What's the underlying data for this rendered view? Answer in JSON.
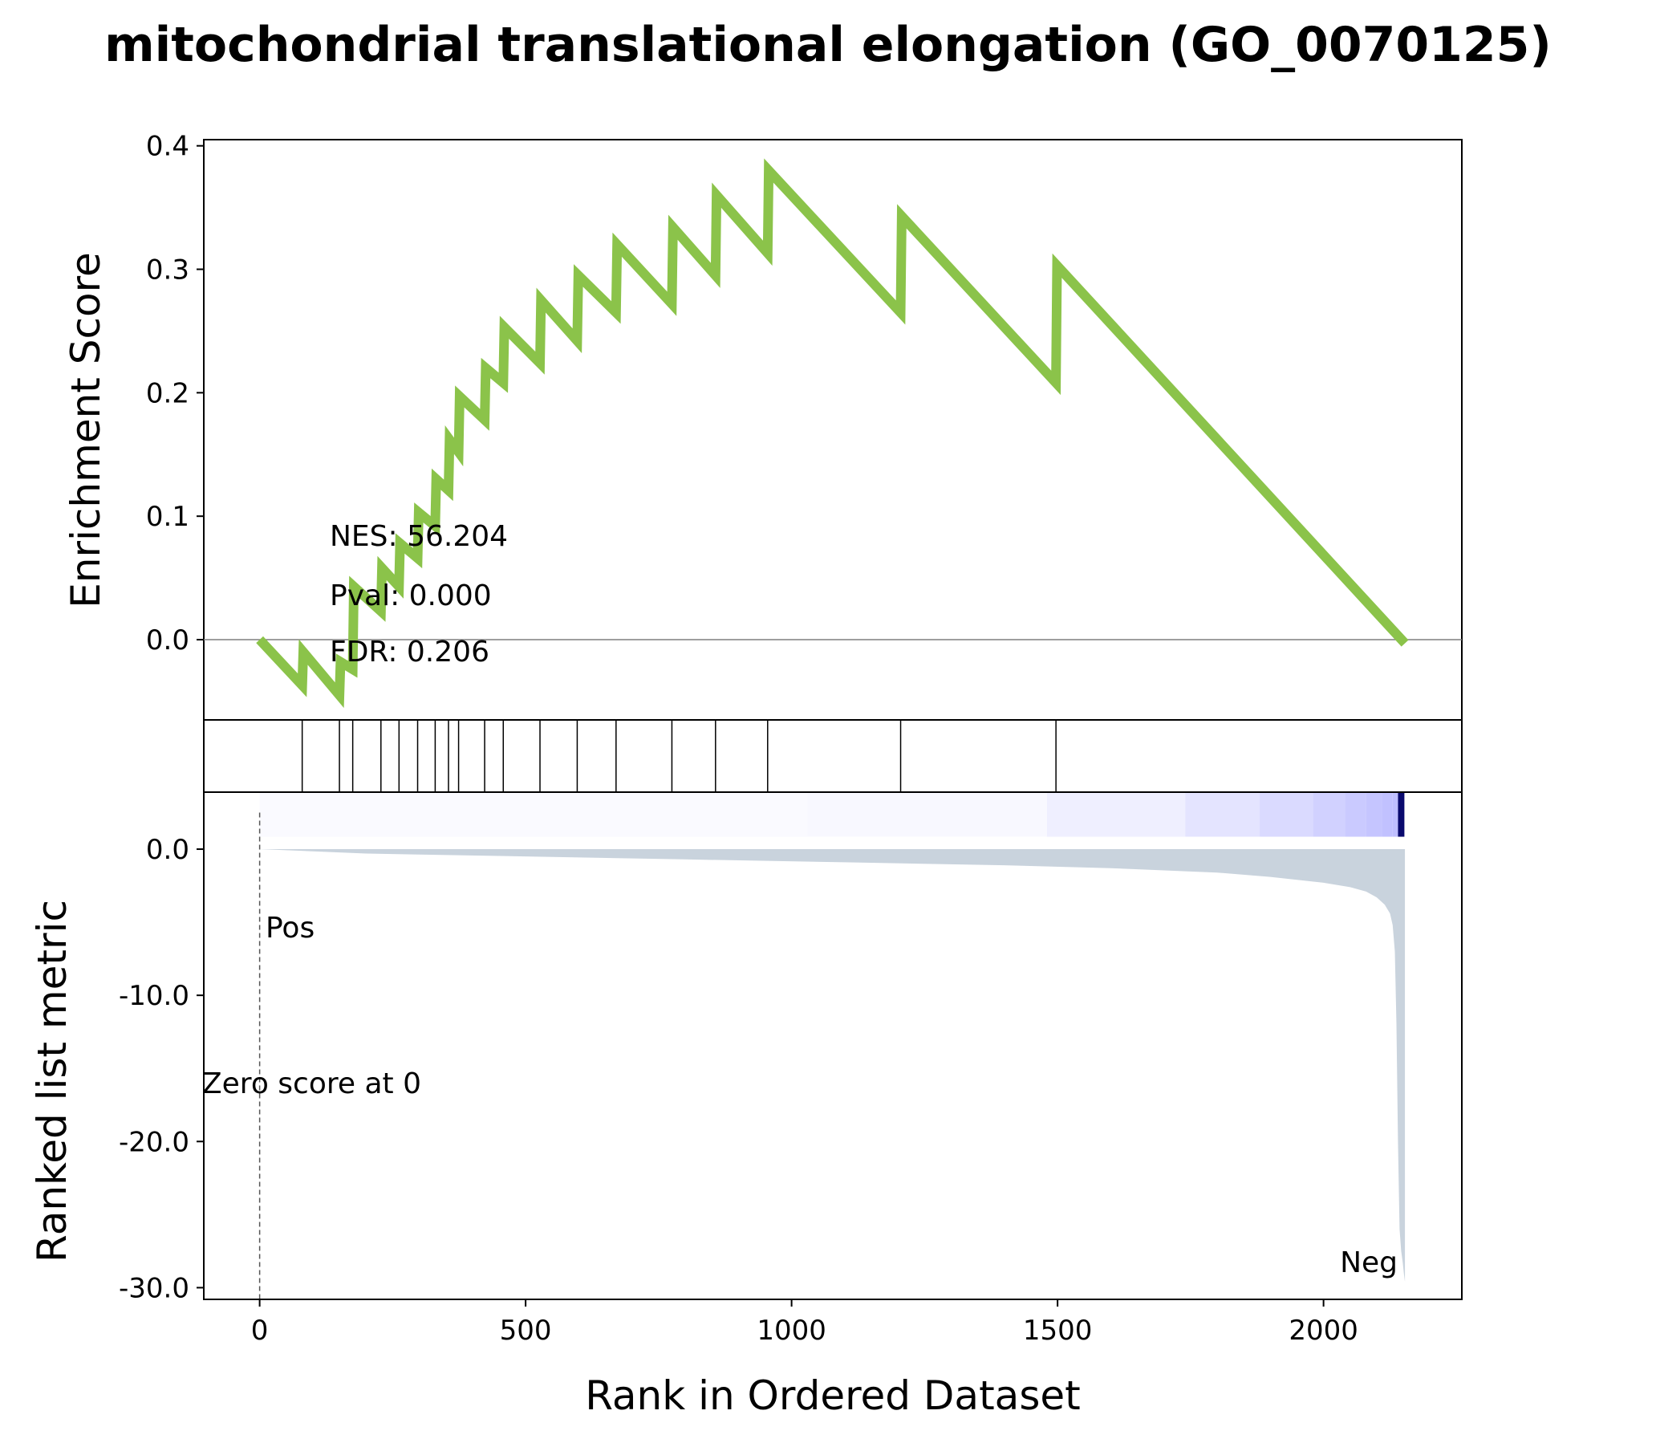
{
  "chart_data": {
    "type": "line",
    "title": "mitochondrial translational elongation (GO_0070125)",
    "es_panel": {
      "ylabel": "Enrichment Score",
      "ylim": [
        -0.065,
        0.405
      ],
      "yticks": [
        0.0,
        0.1,
        0.2,
        0.3,
        0.4
      ],
      "ytick_labels": [
        "0.0",
        "0.1",
        "0.2",
        "0.3",
        "0.4"
      ],
      "line_color": "#8bc34a",
      "series": [
        {
          "x": [
            0,
            80,
            82,
            150,
            152,
            175,
            177,
            228,
            230,
            262,
            264,
            297,
            299,
            330,
            332,
            355,
            357,
            374,
            376,
            423,
            425,
            458,
            460,
            527,
            529,
            597,
            599,
            670,
            672,
            775,
            777,
            857,
            859,
            955,
            957,
            1205,
            1207,
            1497,
            1499,
            2153
          ],
          "y": [
            0.0,
            -0.037,
            -0.01,
            -0.045,
            -0.018,
            -0.024,
            0.043,
            0.023,
            0.058,
            0.043,
            0.078,
            0.066,
            0.103,
            0.092,
            0.13,
            0.121,
            0.162,
            0.152,
            0.197,
            0.178,
            0.22,
            0.208,
            0.253,
            0.224,
            0.275,
            0.242,
            0.295,
            0.265,
            0.32,
            0.272,
            0.334,
            0.295,
            0.36,
            0.313,
            0.38,
            0.265,
            0.343,
            0.208,
            0.303,
            -0.003
          ]
        }
      ],
      "annotations": [
        "NES: 56.204",
        "Pval: 0.000",
        "FDR: 0.206"
      ]
    },
    "hits_panel": {
      "hit_ranks": [
        80,
        150,
        175,
        228,
        262,
        297,
        330,
        355,
        374,
        423,
        458,
        527,
        597,
        670,
        775,
        857,
        955,
        1205,
        1497
      ]
    },
    "rank_panel": {
      "ylabel": "Ranked list metric",
      "xlabel": "Rank in Ordered Dataset",
      "xlim": [
        -105,
        2260
      ],
      "xticks": [
        0,
        500,
        1000,
        1500,
        2000
      ],
      "xtick_labels": [
        "0",
        "500",
        "1000",
        "1500",
        "2000"
      ],
      "ylim": [
        -30.8,
        3.9
      ],
      "yticks": [
        0.0,
        -10.0,
        -20.0,
        -30.0
      ],
      "ytick_labels": [
        "0.0",
        "-10.0",
        "-20.0",
        "-30.0"
      ],
      "fill_color": "#c9d3dd",
      "metric_curve": {
        "x": [
          0,
          200,
          500,
          800,
          1100,
          1400,
          1600,
          1800,
          1900,
          2000,
          2050,
          2080,
          2100,
          2115,
          2125,
          2130,
          2134,
          2137,
          2140,
          2143,
          2146,
          2149,
          2151,
          2153
        ],
        "y": [
          0.0,
          -0.3,
          -0.5,
          -0.7,
          -0.9,
          -1.1,
          -1.3,
          -1.6,
          -1.9,
          -2.3,
          -2.6,
          -2.9,
          -3.3,
          -3.8,
          -4.4,
          -5.2,
          -7.0,
          -12.0,
          -20.0,
          -26.0,
          -27.5,
          -28.3,
          -29.0,
          -29.6
        ]
      },
      "zero_score_label": "Zero score at 0",
      "zero_score_rank": 0,
      "pos_label": "Pos",
      "neg_label": "Neg",
      "pos_color": "#ff0000",
      "neg_color": "#0000ff"
    }
  }
}
